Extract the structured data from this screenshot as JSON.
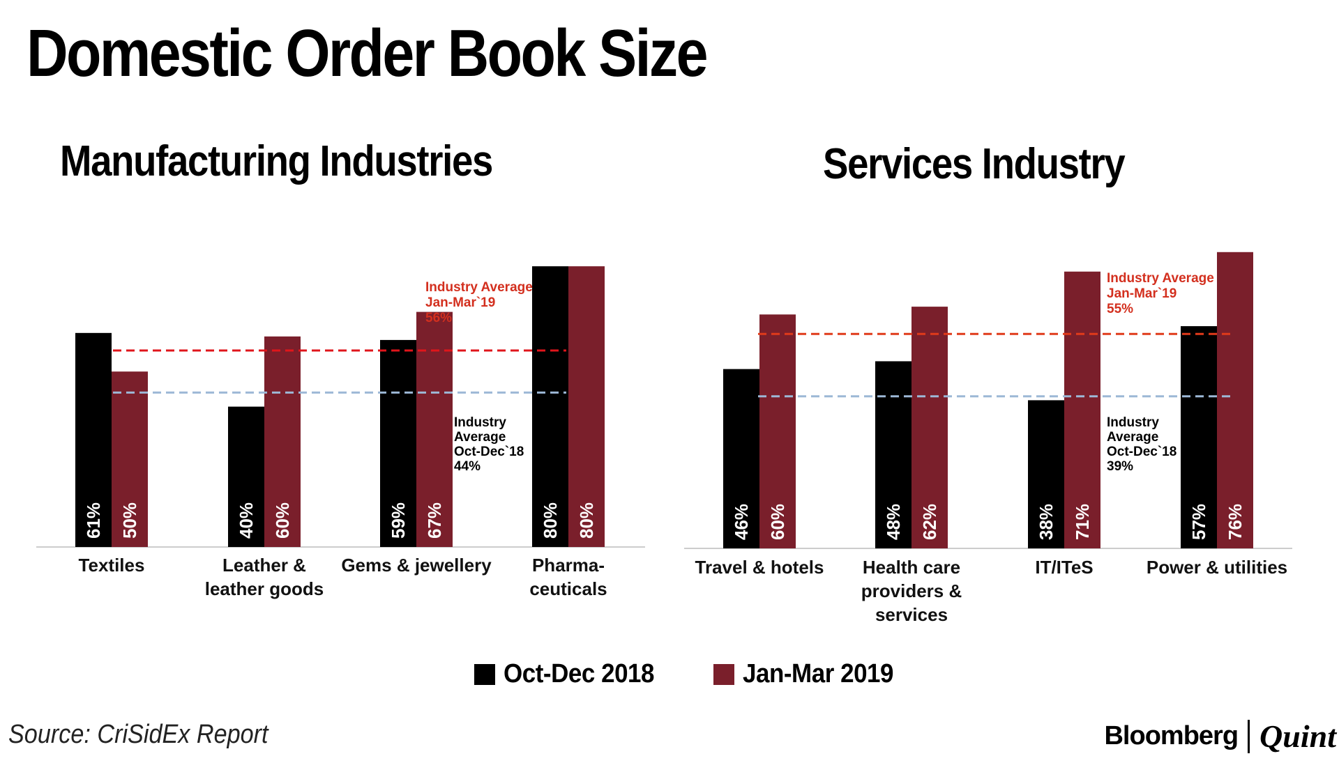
{
  "title": "Domestic Order Book Size",
  "colors": {
    "series1": "#000000",
    "series2": "#7a1f2b",
    "avg_prev": "#9db8d6",
    "avg_curr": "#e0151b",
    "avg_curr_right": "#e03a1a",
    "axis": "#cccccc"
  },
  "legend": {
    "series1": "Oct-Dec 2018",
    "series2": "Jan-Mar 2019"
  },
  "chart_data": [
    {
      "id": "manufacturing",
      "type": "bar",
      "title": "Manufacturing Industries",
      "categories": [
        "Textiles",
        "Leather &\nleather goods",
        "Gems & jewellery",
        "Pharma-\nceuticals"
      ],
      "series": [
        {
          "name": "Oct-Dec 2018",
          "values": [
            61,
            40,
            59,
            80
          ]
        },
        {
          "name": "Jan-Mar 2019",
          "values": [
            50,
            60,
            67,
            80
          ]
        }
      ],
      "ylim": [
        0,
        84
      ],
      "value_labels": {
        "Oct-Dec 2018": [
          "61%",
          "40%",
          "59%",
          "80%"
        ],
        "Jan-Mar 2019": [
          "50%",
          "60%",
          "67%",
          "80%"
        ]
      },
      "reference_lines": [
        {
          "label": "Industry\nAverage\nOct-Dec`18\n44%",
          "value": 44,
          "style": "avg_prev"
        },
        {
          "label": "Industry Average\nJan-Mar`19\n56%",
          "value": 56,
          "style": "avg_curr"
        }
      ]
    },
    {
      "id": "services",
      "type": "bar",
      "title": "Services Industry",
      "categories": [
        "Travel & hotels",
        "Health care\nproviders &\nservices",
        "IT/ITeS",
        "Power & utilities"
      ],
      "series": [
        {
          "name": "Oct-Dec 2018",
          "values": [
            46,
            48,
            38,
            57
          ]
        },
        {
          "name": "Jan-Mar 2019",
          "values": [
            60,
            62,
            71,
            76
          ]
        }
      ],
      "ylim": [
        0,
        79
      ],
      "value_labels": {
        "Oct-Dec 2018": [
          "46%",
          "48%",
          "38%",
          "57%"
        ],
        "Jan-Mar 2019": [
          "60%",
          "62%",
          "71%",
          "76%"
        ]
      },
      "reference_lines": [
        {
          "label": "Industry\nAverage\nOct-Dec`18\n39%",
          "value": 39,
          "style": "avg_prev"
        },
        {
          "label": "Industry Average\nJan-Mar`19\n55%",
          "value": 55,
          "style": "avg_curr_right"
        }
      ]
    }
  ],
  "source": "Source: CriSidEx Report",
  "brand": {
    "part1": "Bloomberg",
    "part2": "Quint"
  }
}
